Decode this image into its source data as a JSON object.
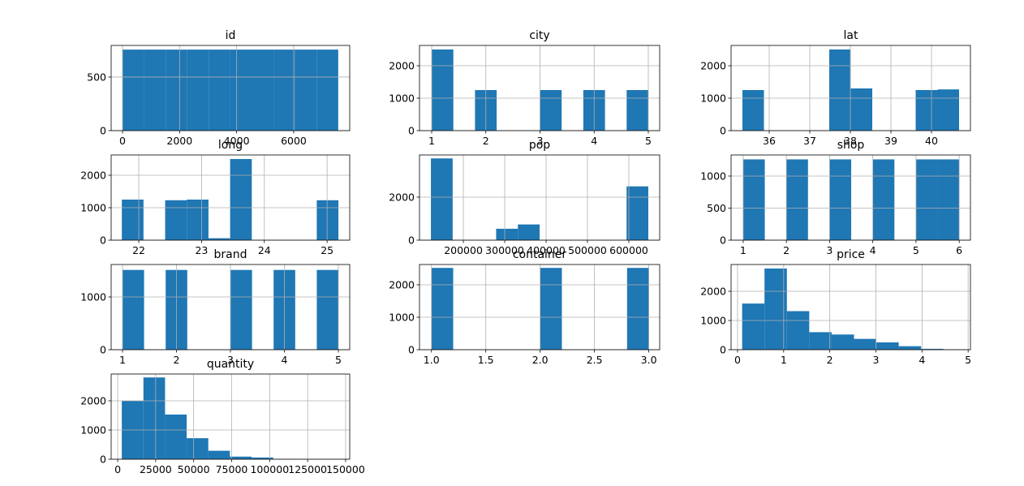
{
  "chart_data": [
    {
      "type": "histogram",
      "title": "id",
      "bins": [
        0,
        756,
        1512,
        2268,
        3024,
        3780,
        4536,
        5292,
        6048,
        6804,
        7560
      ],
      "values": [
        756,
        756,
        756,
        756,
        756,
        756,
        756,
        756,
        756,
        756
      ],
      "color": "#1f77b4",
      "xlim": [
        -398,
        7963
      ],
      "ylim": [
        0,
        795
      ],
      "xticks": [
        0,
        2000,
        4000,
        6000
      ],
      "yticks": [
        0,
        500
      ],
      "grid": true
    },
    {
      "type": "histogram",
      "title": "city",
      "bins": [
        1,
        1.4,
        1.8,
        2.2,
        2.6,
        3,
        3.4,
        3.8,
        4.2,
        4.6,
        5
      ],
      "values": [
        2500,
        0,
        1250,
        0,
        0,
        1250,
        0,
        1250,
        0,
        1250
      ],
      "color": "#1f77b4",
      "xlim": [
        0.775,
        5.21
      ],
      "ylim": [
        0,
        2625
      ],
      "xticks": [
        1,
        2,
        3,
        4,
        5
      ],
      "yticks": [
        0,
        1000,
        2000
      ],
      "grid": true
    },
    {
      "type": "histogram",
      "title": "lat",
      "bins": [
        35.34,
        35.87,
        36.41,
        36.94,
        37.48,
        38.01,
        38.54,
        39.08,
        39.61,
        40.15,
        40.68
      ],
      "values": [
        1250,
        0,
        0,
        0,
        2500,
        1300,
        0,
        0,
        1250,
        1270
      ],
      "color": "#1f77b4",
      "xlim": [
        35.06,
        40.96
      ],
      "ylim": [
        0,
        2625
      ],
      "xticks": [
        36,
        37,
        38,
        39,
        40
      ],
      "yticks": [
        0,
        1000,
        2000
      ],
      "grid": true
    },
    {
      "type": "histogram",
      "title": "long",
      "bins": [
        21.73,
        22.075,
        22.42,
        22.765,
        23.11,
        23.455,
        23.8,
        24.145,
        24.49,
        24.835,
        25.18
      ],
      "values": [
        1250,
        0,
        1230,
        1250,
        60,
        2500,
        0,
        0,
        0,
        1230
      ],
      "color": "#1f77b4",
      "xlim": [
        21.56,
        25.36
      ],
      "ylim": [
        0,
        2625
      ],
      "xticks": [
        22,
        23,
        24,
        25
      ],
      "yticks": [
        0,
        1000,
        2000
      ],
      "grid": true
    },
    {
      "type": "histogram",
      "title": "pop",
      "bins": [
        121600,
        174140,
        226680,
        279220,
        331760,
        384300,
        436840,
        489380,
        541920,
        594460,
        647000
      ],
      "values": [
        3800,
        0,
        0,
        530,
        730,
        0,
        0,
        0,
        0,
        2500
      ],
      "color": "#1f77b4",
      "xlim": [
        94000,
        674500
      ],
      "ylim": [
        0,
        3960
      ],
      "xticks": [
        200000,
        300000,
        400000,
        500000,
        600000
      ],
      "yticks": [
        0,
        2000
      ],
      "grid": true
    },
    {
      "type": "histogram",
      "title": "shop",
      "bins": [
        1,
        1.5,
        2,
        2.5,
        3,
        3.5,
        4,
        4.5,
        5,
        5.5,
        6
      ],
      "values": [
        1260,
        0,
        1260,
        0,
        1260,
        0,
        1260,
        0,
        1260,
        1260
      ],
      "color": "#1f77b4",
      "xlim": [
        0.72,
        6.26
      ],
      "ylim": [
        0,
        1329
      ],
      "xticks": [
        1,
        2,
        3,
        4,
        5,
        6
      ],
      "yticks": [
        0,
        500,
        1000
      ],
      "grid": true
    },
    {
      "type": "histogram",
      "title": "brand",
      "bins": [
        1,
        1.4,
        1.8,
        2.2,
        2.6,
        3,
        3.4,
        3.8,
        4.2,
        4.6,
        5
      ],
      "values": [
        1512,
        0,
        1512,
        0,
        0,
        1512,
        0,
        1512,
        0,
        1512
      ],
      "color": "#1f77b4",
      "xlim": [
        0.79,
        5.21
      ],
      "ylim": [
        0,
        1615
      ],
      "xticks": [
        1,
        2,
        3,
        4,
        5
      ],
      "yticks": [
        0,
        1000
      ],
      "grid": true
    },
    {
      "type": "histogram",
      "title": "container",
      "bins": [
        1,
        1.2,
        1.4,
        1.6,
        1.8,
        2,
        2.2,
        2.4,
        2.6,
        2.8,
        3
      ],
      "values": [
        2520,
        0,
        0,
        0,
        0,
        2520,
        0,
        0,
        0,
        2520
      ],
      "color": "#1f77b4",
      "xlim": [
        0.89,
        3.1
      ],
      "ylim": [
        0,
        2625
      ],
      "xticks": [
        {
          "value": 1,
          "label": "1.0"
        },
        1.5,
        {
          "value": 2,
          "label": "2.0"
        },
        2.5,
        {
          "value": 3,
          "label": "3.0"
        }
      ],
      "yticks": [
        0,
        1000,
        2000
      ],
      "grid": true
    },
    {
      "type": "histogram",
      "title": "price",
      "bins": [
        0.1,
        0.585,
        1.07,
        1.555,
        2.04,
        2.525,
        3.01,
        3.495,
        3.98,
        4.465,
        4.95
      ],
      "values": [
        1580,
        2780,
        1320,
        600,
        520,
        370,
        250,
        120,
        30,
        10
      ],
      "color": "#1f77b4",
      "xlim": [
        -0.14,
        5.05
      ],
      "ylim": [
        0,
        2917
      ],
      "xticks": [
        0,
        1,
        2,
        3,
        4,
        5
      ],
      "yticks": [
        0,
        1000,
        2000
      ],
      "grid": true
    },
    {
      "type": "histogram",
      "title": "quantity",
      "bins": [
        2700,
        16930,
        31160,
        45390,
        59620,
        73850,
        88080,
        102310,
        116540,
        130770,
        145000
      ],
      "values": [
        2000,
        2800,
        1530,
        720,
        290,
        90,
        60,
        10,
        0,
        5
      ],
      "color": "#1f77b4",
      "xlim": [
        -4300,
        152700
      ],
      "ylim": [
        0,
        2917
      ],
      "xticks": [
        0,
        25000,
        50000,
        75000,
        100000,
        125000,
        150000
      ],
      "yticks": [
        0,
        1000,
        2000
      ],
      "grid": true
    }
  ]
}
